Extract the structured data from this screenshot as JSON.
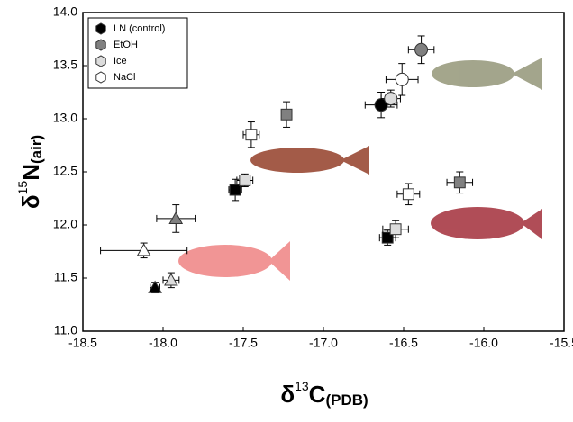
{
  "chart_data": {
    "type": "scatter",
    "xlabel": {
      "symbol": "δ",
      "sup": "13",
      "main": "C",
      "sub": "(PDB)"
    },
    "ylabel": {
      "symbol": "δ",
      "sup": "15",
      "main": "N",
      "sub": "(air)"
    },
    "xlim": [
      -18.5,
      -15.5
    ],
    "ylim": [
      11.0,
      14.0
    ],
    "xticks": [
      {
        "value": -18.5,
        "label": "-18.5"
      },
      {
        "value": -18,
        "label": "-18.0"
      },
      {
        "value": -17.5,
        "label": "-17.5"
      },
      {
        "value": -17,
        "label": "-17.0"
      },
      {
        "value": -16.5,
        "label": "-16.5"
      },
      {
        "value": -16,
        "label": "-16.0"
      },
      {
        "value": -15.5,
        "label": "-15.5"
      }
    ],
    "yticks": [
      {
        "value": 11,
        "label": "11.0"
      },
      {
        "value": 11.5,
        "label": "11.5"
      },
      {
        "value": 12,
        "label": "12.0"
      },
      {
        "value": 12.5,
        "label": "12.5"
      },
      {
        "value": 13,
        "label": "13.0"
      },
      {
        "value": 13.5,
        "label": "13.5"
      },
      {
        "value": 14,
        "label": "14.0"
      }
    ],
    "markers": [
      "triangle",
      "square",
      "circle",
      "square"
    ],
    "legend": "upper left",
    "series": [
      {
        "name": "LN (control)",
        "color": "#000000",
        "x": [
          -18.05,
          -17.55,
          -16.64,
          -16.6
        ],
        "values": [
          11.41,
          12.33,
          13.13,
          11.88
        ],
        "xerr": [
          0.03,
          0.04,
          0.1,
          0.05
        ],
        "yerr": [
          0.05,
          0.1,
          0.12,
          0.07
        ]
      },
      {
        "name": "EtOH",
        "color": "#808080",
        "x": [
          -17.92,
          -17.23,
          -16.39,
          -16.15
        ],
        "values": [
          12.06,
          13.04,
          13.65,
          12.4
        ],
        "xerr": [
          0.12,
          0.03,
          0.08,
          0.08
        ],
        "yerr": [
          0.13,
          0.12,
          0.13,
          0.1
        ]
      },
      {
        "name": "Ice",
        "color": "#dcdcdc",
        "x": [
          -17.95,
          -17.49,
          -16.58,
          -16.55
        ],
        "values": [
          11.48,
          12.42,
          13.19,
          11.96
        ],
        "xerr": [
          0.05,
          0.05,
          0.06,
          0.08
        ],
        "yerr": [
          0.07,
          0.06,
          0.08,
          0.08
        ]
      },
      {
        "name": "NaCl",
        "color": "#ffffff",
        "x": [
          -18.12,
          -17.45,
          -16.51,
          -16.47
        ],
        "values": [
          11.76,
          12.85,
          13.37,
          12.29
        ],
        "xerr": [
          0.27,
          0.05,
          0.1,
          0.07
        ],
        "yerr": [
          0.07,
          0.12,
          0.15,
          0.1
        ]
      }
    ]
  }
}
